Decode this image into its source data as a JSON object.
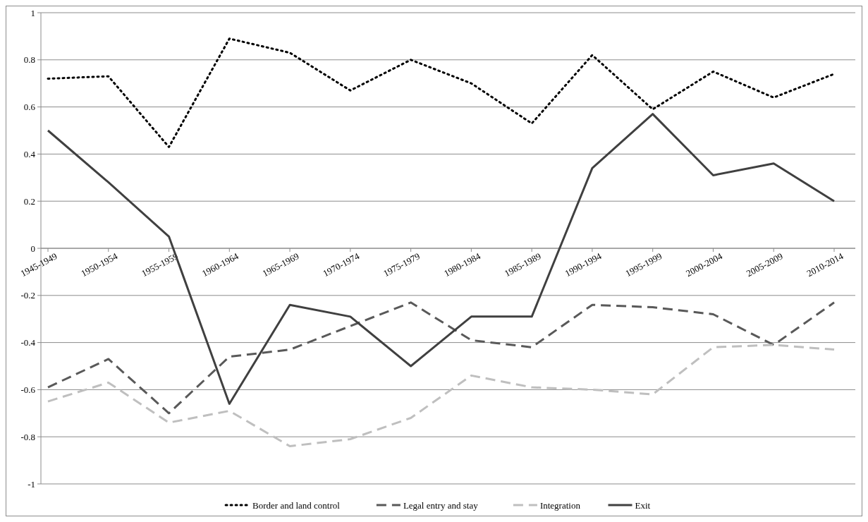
{
  "chart_data": {
    "type": "line",
    "categories": [
      "1945-1949",
      "1950-1954",
      "1955-1959",
      "1960-1964",
      "1965-1969",
      "1970-1974",
      "1975-1979",
      "1980-1984",
      "1985-1989",
      "1990-1994",
      "1995-1999",
      "2000-2004",
      "2005-2009",
      "2010-2014"
    ],
    "series": [
      {
        "name": "Border and land control",
        "color": "#000000",
        "line_style": "dotted",
        "values": [
          0.72,
          0.73,
          0.43,
          0.89,
          0.83,
          0.67,
          0.8,
          0.7,
          0.53,
          0.82,
          0.59,
          0.75,
          0.64,
          0.74
        ]
      },
      {
        "name": "Legal entry and stay",
        "color": "#595959",
        "line_style": "dashed",
        "values": [
          -0.59,
          -0.47,
          -0.7,
          -0.46,
          -0.43,
          -0.33,
          -0.23,
          -0.39,
          -0.42,
          -0.24,
          -0.25,
          -0.28,
          -0.41,
          -0.23
        ]
      },
      {
        "name": "Integration",
        "color": "#bfbfbf",
        "line_style": "dashed",
        "values": [
          -0.65,
          -0.57,
          -0.74,
          -0.69,
          -0.84,
          -0.81,
          -0.72,
          -0.54,
          -0.59,
          -0.6,
          -0.62,
          -0.42,
          -0.41,
          -0.43
        ]
      },
      {
        "name": "Exit",
        "color": "#404040",
        "line_style": "solid",
        "values": [
          0.5,
          0.28,
          0.05,
          -0.66,
          -0.24,
          -0.29,
          -0.5,
          -0.29,
          -0.29,
          0.34,
          0.57,
          0.31,
          0.36,
          0.2
        ]
      }
    ],
    "ylim": [
      -1,
      1
    ],
    "yticks": [
      -1,
      -0.8,
      -0.6,
      -0.4,
      -0.2,
      0,
      0.2,
      0.4,
      0.6,
      0.8,
      1
    ],
    "grid": "y",
    "legend": "bottom",
    "marker": "none"
  }
}
